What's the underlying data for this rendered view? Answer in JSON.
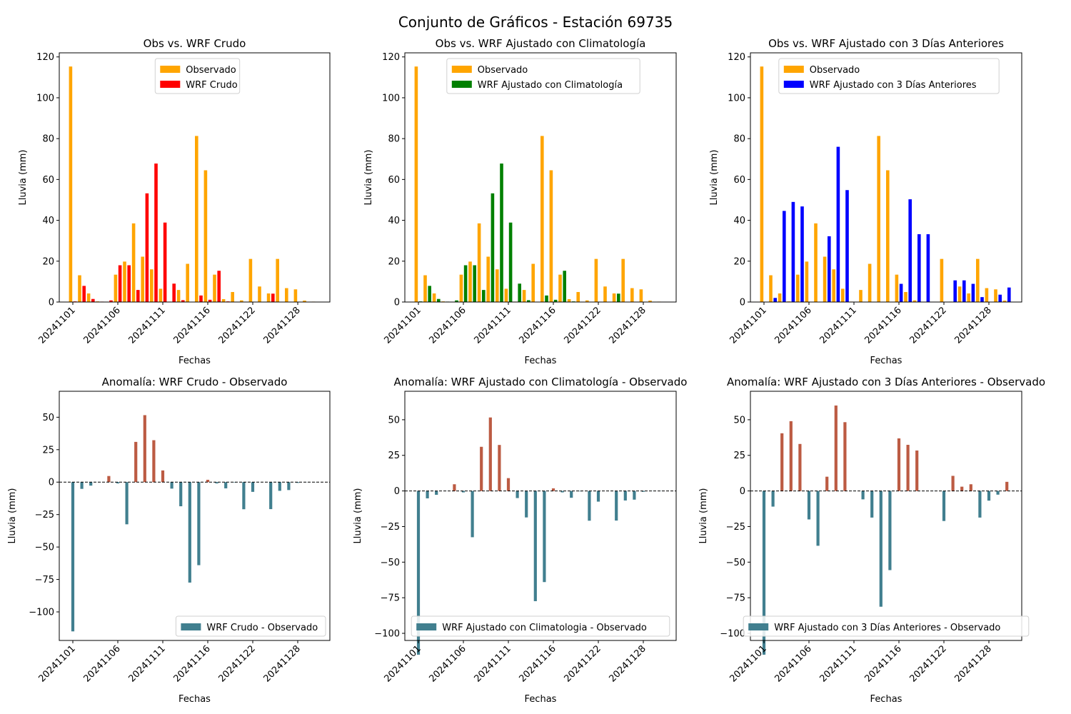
{
  "figure": {
    "title": "Conjunto de Gráficos - Estación 69735"
  },
  "colors": {
    "observado": "#ffa500",
    "wrf_crudo": "#ff0000",
    "wrf_clim": "#008000",
    "wrf_3d": "#0000ff",
    "anom_pos": "#bc5b43",
    "anom_neg": "#417f8f"
  },
  "chart_data": [
    {
      "id": "c1",
      "type": "bar",
      "title": "Obs vs. WRF Crudo",
      "xlabel": "Fechas",
      "ylabel": "Lluvia (mm)",
      "ylim": [
        0,
        122
      ],
      "yticks": [
        0,
        20,
        40,
        60,
        80,
        100,
        120
      ],
      "xtick_labels": [
        "20241101",
        "20241106",
        "20241111",
        "20241116",
        "20241122",
        "20241128"
      ],
      "xtick_index": [
        0,
        5,
        10,
        15,
        20,
        25
      ],
      "legend": "top-center",
      "categories_count": 28,
      "series": [
        {
          "name": "Observado",
          "color_key": "observado",
          "values": [
            115.3,
            13.1,
            4.2,
            0.3,
            0.1,
            13.4,
            19.8,
            38.5,
            22.2,
            16.0,
            6.5,
            0.2,
            5.9,
            18.7,
            81.3,
            64.5,
            13.4,
            1.4,
            4.9,
            0.8,
            21.1,
            7.6,
            4.2,
            21.1,
            6.8,
            6.2,
            0.7,
            0.2
          ]
        },
        {
          "name": "WRF Crudo",
          "color_key": "wrf_crudo",
          "values": [
            0.3,
            7.9,
            1.5,
            0.2,
            0.8,
            18.0,
            18.0,
            5.9,
            53.2,
            67.8,
            38.9,
            9.0,
            0.9,
            0.1,
            3.2,
            1.1,
            15.3,
            0.3,
            0.1,
            0.1,
            0.1,
            0.1,
            4.1,
            0.1,
            0.1,
            0.1,
            0.1,
            0.1
          ]
        }
      ]
    },
    {
      "id": "c2",
      "type": "bar",
      "title": "Obs vs. WRF Ajustado con Climatología",
      "xlabel": "Fechas",
      "ylabel": "Lluvia (mm)",
      "ylim": [
        0,
        122
      ],
      "yticks": [
        0,
        20,
        40,
        60,
        80,
        100,
        120
      ],
      "xtick_labels": [
        "20241101",
        "20241106",
        "20241111",
        "20241116",
        "20241122",
        "20241128"
      ],
      "xtick_index": [
        0,
        5,
        10,
        15,
        20,
        25
      ],
      "legend": "top-center",
      "categories_count": 28,
      "series": [
        {
          "name": "Observado",
          "color_key": "observado",
          "values": [
            115.3,
            13.1,
            4.2,
            0.3,
            0.1,
            13.4,
            19.8,
            38.5,
            22.2,
            16.0,
            6.5,
            0.2,
            5.9,
            18.7,
            81.3,
            64.5,
            13.4,
            1.4,
            4.9,
            0.8,
            21.1,
            7.6,
            4.2,
            21.1,
            6.8,
            6.2,
            0.7,
            0.2
          ]
        },
        {
          "name": "WRF Ajustado con Climatología",
          "color_key": "wrf_clim",
          "values": [
            0.3,
            7.9,
            1.5,
            0.2,
            0.8,
            18.0,
            18.0,
            5.9,
            53.2,
            67.8,
            38.9,
            9.0,
            0.9,
            0.1,
            3.2,
            1.1,
            15.3,
            0.3,
            0.1,
            0.1,
            0.1,
            0.1,
            4.1,
            0.1,
            0.1,
            0.1,
            0.1,
            0.1
          ]
        }
      ]
    },
    {
      "id": "c3",
      "type": "bar",
      "title": "Obs vs. WRF Ajustado con 3 Días Anteriores",
      "xlabel": "Fechas",
      "ylabel": "Lluvia (mm)",
      "ylim": [
        0,
        122
      ],
      "yticks": [
        0,
        20,
        40,
        60,
        80,
        100,
        120
      ],
      "xtick_labels": [
        "20241101",
        "20241106",
        "20241111",
        "20241116",
        "20241122",
        "20241128"
      ],
      "xtick_index": [
        0,
        5,
        10,
        15,
        20,
        25
      ],
      "legend": "top-center",
      "categories_count": 28,
      "series": [
        {
          "name": "Observado",
          "color_key": "observado",
          "values": [
            115.3,
            13.1,
            4.2,
            0.3,
            13.4,
            19.8,
            38.5,
            22.2,
            16.0,
            6.5,
            0.2,
            5.9,
            18.7,
            81.3,
            64.5,
            13.4,
            4.9,
            0.8,
            0.1,
            0.1,
            21.1,
            0.2,
            7.6,
            4.2,
            21.1,
            6.8,
            6.2,
            0.7
          ]
        },
        {
          "name": "WRF Ajustado con 3 Días Anteriores",
          "color_key": "wrf_3d",
          "values": [
            0.0,
            2.0,
            44.6,
            49.0,
            46.8,
            0.0,
            0.0,
            32.2,
            76.0,
            54.8,
            0.0,
            0.0,
            0.0,
            0.0,
            0.0,
            8.9,
            50.3,
            33.2,
            33.2,
            0.0,
            0.0,
            10.6,
            10.6,
            8.9,
            2.4,
            0.0,
            3.6,
            7.1
          ]
        }
      ]
    },
    {
      "id": "c4",
      "type": "bar",
      "title": "Anomalía: WRF Crudo - Observado",
      "xlabel": "Fechas",
      "ylabel": "Lluvia (mm)",
      "ylim": [
        -122,
        70
      ],
      "yticks": [
        -100,
        -75,
        -50,
        -25,
        0,
        25,
        50
      ],
      "xtick_labels": [
        "20241101",
        "20241106",
        "20241111",
        "20241116",
        "20241122",
        "20241128"
      ],
      "xtick_index": [
        0,
        5,
        10,
        15,
        20,
        25
      ],
      "legend": "bottom-right",
      "zero_line": true,
      "categories_count": 28,
      "series": [
        {
          "name": "WRF Crudo - Observado",
          "color_key": "anom_neg",
          "values": [
            -115.0,
            -5.2,
            -2.7,
            -0.1,
            4.7,
            -1.0,
            -32.5,
            31.0,
            51.6,
            32.3,
            9.0,
            -5.0,
            -18.6,
            -77.4,
            -64.0,
            1.8,
            -1.0,
            -4.8,
            -0.3,
            -20.9,
            -7.5,
            -0.1,
            -20.8,
            -6.7,
            -6.1,
            -0.6,
            -0.1,
            -0.1
          ]
        }
      ]
    },
    {
      "id": "c5",
      "type": "bar",
      "title": "Anomalía: WRF Ajustado con Climatología - Observado",
      "xlabel": "Fechas",
      "ylabel": "Lluvia (mm)",
      "ylim": [
        -105,
        70
      ],
      "yticks": [
        -100,
        -75,
        -50,
        -25,
        0,
        25,
        50
      ],
      "xtick_labels": [
        "20241101",
        "20241106",
        "20241111",
        "20241116",
        "20241122",
        "20241128"
      ],
      "xtick_index": [
        0,
        5,
        10,
        15,
        20,
        25
      ],
      "legend": "bottom-center",
      "zero_line": true,
      "categories_count": 28,
      "series": [
        {
          "name": "WRF Ajustado con Climatologia - Observado",
          "color_key": "anom_neg",
          "values": [
            -115.0,
            -5.2,
            -2.7,
            -0.1,
            4.7,
            -1.0,
            -32.5,
            31.0,
            51.6,
            32.3,
            9.0,
            -5.0,
            -18.6,
            -77.4,
            -64.0,
            1.8,
            -1.0,
            -4.8,
            -0.3,
            -20.9,
            -7.5,
            -0.1,
            -20.8,
            -6.7,
            -6.1,
            -0.6,
            -0.1,
            -0.1
          ]
        }
      ]
    },
    {
      "id": "c6",
      "type": "bar",
      "title": "Anomalía: WRF Ajustado con 3 Días Anteriores - Observado",
      "xlabel": "Fechas",
      "ylabel": "Lluvia (mm)",
      "ylim": [
        -105,
        70
      ],
      "yticks": [
        -100,
        -75,
        -50,
        -25,
        0,
        25,
        50
      ],
      "xtick_labels": [
        "20241101",
        "20241106",
        "20241111",
        "20241116",
        "20241122",
        "20241128"
      ],
      "xtick_index": [
        0,
        5,
        10,
        15,
        20,
        25
      ],
      "legend": "bottom-center",
      "zero_line": true,
      "categories_count": 28,
      "series": [
        {
          "name": "WRF Ajustado con 3 Días Anteriores - Observado",
          "color_key": "anom_neg",
          "values": [
            -115.0,
            -11.0,
            40.5,
            49.0,
            33.0,
            -20.0,
            -38.5,
            10.0,
            60.0,
            48.3,
            -0.1,
            -5.9,
            -18.7,
            -81.3,
            -55.6,
            36.9,
            32.4,
            28.4,
            0.0,
            -0.1,
            -21.1,
            10.6,
            3.0,
            4.7,
            -18.7,
            -6.8,
            -2.6,
            6.4
          ]
        }
      ]
    }
  ]
}
